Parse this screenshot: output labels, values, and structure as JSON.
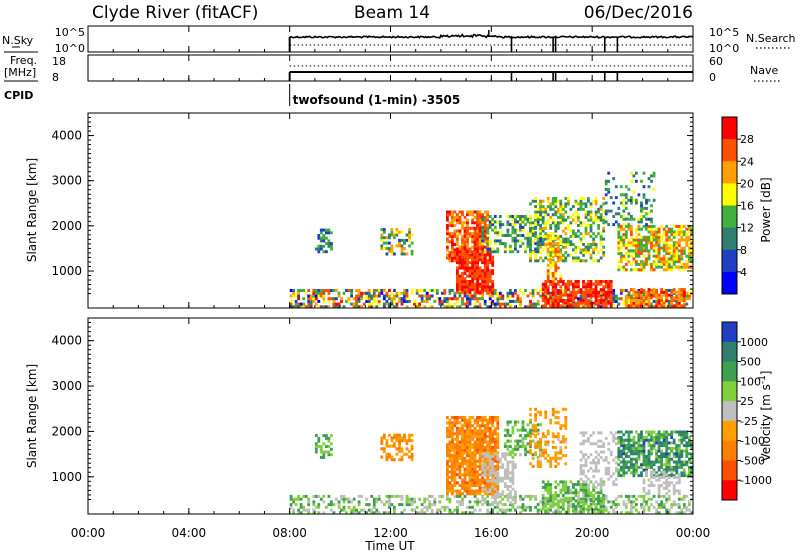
{
  "header": {
    "radar": "Clyde River (fitACF)",
    "beam": "Beam 14",
    "date": "06/Dec/2016"
  },
  "nsky_panel": {
    "left_label": "N.Sky",
    "right_label": "N.Search",
    "left_ticks": [
      "10^5",
      "10^0"
    ],
    "right_ticks": [
      "10^5",
      "10^0"
    ]
  },
  "freq_panel": {
    "left_label_line1": "Freq.",
    "left_label_line2": "[MHz]",
    "right_label": "Nave",
    "left_ticks": [
      18,
      8
    ],
    "right_ticks": [
      60,
      0
    ],
    "left_range": [
      8,
      18
    ],
    "right_range": [
      0,
      60
    ]
  },
  "cpid": {
    "label": "CPID",
    "text": "twofsound (1-min) -3505",
    "start_hour": 8
  },
  "time_axis": {
    "label": "Time UT",
    "ticks": [
      "00:00",
      "04:00",
      "08:00",
      "12:00",
      "16:00",
      "20:00",
      "00:00"
    ],
    "tick_hours": [
      0,
      4,
      8,
      12,
      16,
      20,
      24
    ],
    "range_hours": [
      0,
      24
    ]
  },
  "chart_data": [
    {
      "type": "heatmap",
      "name": "power",
      "ylabel": "Slant Range [km]",
      "yticks": [
        1000,
        2000,
        3000,
        4000
      ],
      "ylim": [
        180,
        4500
      ],
      "xlim": [
        0,
        24
      ],
      "colorbar": {
        "label": "Power [dB]",
        "ticks": [
          "4",
          "8",
          "12",
          "16",
          "20",
          "24",
          "28"
        ],
        "colors": [
          "#0000ff",
          "#1f3fc0",
          "#2f7f70",
          "#3faf3f",
          "#ffff00",
          "#ffa000",
          "#ff5000",
          "#ff0000"
        ],
        "range": [
          0,
          32
        ]
      },
      "regions": [
        {
          "t": [
            8.0,
            24.0
          ],
          "r": [
            180,
            600
          ],
          "v": [
            3,
            30
          ],
          "d": 0.55
        },
        {
          "t": [
            9.0,
            9.6
          ],
          "r": [
            1400,
            1900
          ],
          "v": [
            4,
            16
          ],
          "d": 0.55
        },
        {
          "t": [
            11.6,
            12.8
          ],
          "r": [
            1350,
            1900
          ],
          "v": [
            6,
            24
          ],
          "d": 0.5
        },
        {
          "t": [
            14.2,
            15.8
          ],
          "r": [
            1200,
            2300
          ],
          "v": [
            20,
            30
          ],
          "d": 0.75
        },
        {
          "t": [
            14.6,
            16.0
          ],
          "r": [
            500,
            1500
          ],
          "v": [
            24,
            31
          ],
          "d": 0.85
        },
        {
          "t": [
            15.6,
            18.0
          ],
          "r": [
            1400,
            2200
          ],
          "v": [
            6,
            18
          ],
          "d": 0.45
        },
        {
          "t": [
            17.5,
            20.5
          ],
          "r": [
            1200,
            2600
          ],
          "v": [
            8,
            22
          ],
          "d": 0.5
        },
        {
          "t": [
            18.0,
            20.8
          ],
          "r": [
            200,
            800
          ],
          "v": [
            24,
            31
          ],
          "d": 0.7
        },
        {
          "t": [
            18.2,
            18.8
          ],
          "r": [
            800,
            1800
          ],
          "v": [
            18,
            26
          ],
          "d": 0.55
        },
        {
          "t": [
            21.0,
            24.0
          ],
          "r": [
            1000,
            2000
          ],
          "v": [
            12,
            26
          ],
          "d": 0.7
        },
        {
          "t": [
            21.3,
            23.7
          ],
          "r": [
            200,
            600
          ],
          "v": [
            20,
            30
          ],
          "d": 0.6
        },
        {
          "t": [
            20.5,
            22.5
          ],
          "r": [
            2000,
            3200
          ],
          "v": [
            6,
            18
          ],
          "d": 0.25
        }
      ]
    },
    {
      "type": "heatmap",
      "name": "velocity",
      "ylabel": "Slant Range [km]",
      "yticks": [
        1000,
        2000,
        3000,
        4000
      ],
      "ylim": [
        180,
        4500
      ],
      "xlim": [
        0,
        24
      ],
      "colorbar": {
        "label": "Velocity [m s^-1]",
        "ticks": [
          "1000",
          "500",
          "100",
          "25",
          "-25",
          "-100",
          "-500",
          "-1000"
        ],
        "colors": [
          "#1f3fc0",
          "#2f7f70",
          "#3f9f50",
          "#7fcf3f",
          "#bfbfbf",
          "#ffa000",
          "#ff8000",
          "#ff5000",
          "#ff0000"
        ],
        "range": [
          -1000,
          1000
        ]
      },
      "regions": [
        {
          "t": [
            8.0,
            24.0
          ],
          "r": [
            180,
            600
          ],
          "v": [
            -100,
            500
          ],
          "d": 0.45
        },
        {
          "t": [
            9.0,
            9.6
          ],
          "r": [
            1400,
            1900
          ],
          "v": [
            100,
            500
          ],
          "d": 0.55
        },
        {
          "t": [
            11.6,
            12.8
          ],
          "r": [
            1350,
            1900
          ],
          "v": [
            -500,
            -150
          ],
          "d": 0.55
        },
        {
          "t": [
            14.2,
            16.2
          ],
          "r": [
            600,
            2300
          ],
          "v": [
            -600,
            -200
          ],
          "d": 0.85
        },
        {
          "t": [
            15.6,
            17.0
          ],
          "r": [
            400,
            1500
          ],
          "v": [
            -25,
            25
          ],
          "d": 0.5
        },
        {
          "t": [
            16.5,
            18.0
          ],
          "r": [
            1400,
            2200
          ],
          "v": [
            100,
            500
          ],
          "d": 0.4
        },
        {
          "t": [
            18.0,
            20.5
          ],
          "r": [
            200,
            900
          ],
          "v": [
            100,
            500
          ],
          "d": 0.6
        },
        {
          "t": [
            19.5,
            21.0
          ],
          "r": [
            800,
            2000
          ],
          "v": [
            -25,
            25
          ],
          "d": 0.35
        },
        {
          "t": [
            21.0,
            24.0
          ],
          "r": [
            1000,
            2000
          ],
          "v": [
            200,
            800
          ],
          "d": 0.7
        },
        {
          "t": [
            22.0,
            23.5
          ],
          "r": [
            600,
            1100
          ],
          "v": [
            -25,
            25
          ],
          "d": 0.5
        },
        {
          "t": [
            17.5,
            19.0
          ],
          "r": [
            1200,
            2500
          ],
          "v": [
            -400,
            -100
          ],
          "d": 0.35
        }
      ]
    }
  ]
}
